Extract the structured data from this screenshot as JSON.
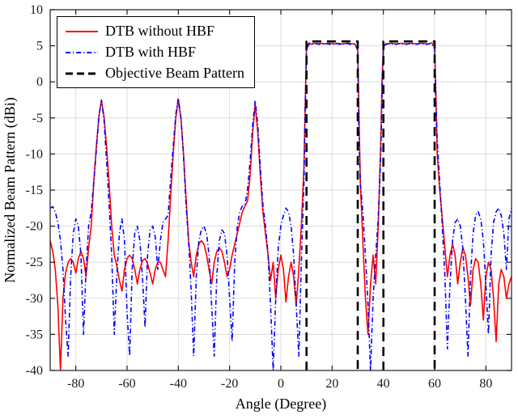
{
  "figure": {
    "title": "",
    "xlabel": "Angle (Degree)",
    "ylabel": "Normalized Beam Pattern (dBi)"
  },
  "colors": {
    "background": "#ffffff",
    "axis": "#1a1a1a",
    "grid": "#dcdcdc",
    "red": "#ff0000",
    "blue": "#0000ff",
    "black": "#000000"
  },
  "chart_data": {
    "type": "line",
    "title": "",
    "xlabel": "Angle (Degree)",
    "ylabel": "Normalized Beam Pattern (dBi)",
    "xlim": [
      -90,
      90
    ],
    "ylim": [
      -40,
      10
    ],
    "xticks": [
      -80,
      -60,
      -40,
      -20,
      0,
      20,
      40,
      60,
      80
    ],
    "yticks": [
      -40,
      -35,
      -30,
      -25,
      -20,
      -15,
      -10,
      -5,
      0,
      5,
      10
    ],
    "grid": true,
    "legend_position": "top-left",
    "features": {
      "narrow_beam_peaks_deg": [
        -70,
        -40,
        -10
      ],
      "narrow_beam_peak_level_dbi": -2.5,
      "flat_beam_bands_deg": [
        [
          10,
          30
        ],
        [
          40,
          60
        ]
      ],
      "flat_beam_level_dbi": 5.3,
      "objective_level_dbi": 5.6
    },
    "series": [
      {
        "name": "DTB without HBF",
        "color": "#ff0000",
        "style": "solid",
        "width": 1.6,
        "x": [
          -90,
          -89,
          -88,
          -87,
          -86,
          -85,
          -84,
          -83,
          -82,
          -81,
          -80,
          -79,
          -78,
          -77,
          -76,
          -75,
          -74,
          -73,
          -72,
          -71,
          -70,
          -69,
          -68,
          -67,
          -66,
          -65,
          -64,
          -63,
          -62,
          -61,
          -60,
          -59,
          -58,
          -57,
          -56,
          -55,
          -54,
          -53,
          -52,
          -51,
          -50,
          -49,
          -48,
          -47,
          -46,
          -45,
          -44,
          -43,
          -42,
          -41,
          -40,
          -39,
          -38,
          -37,
          -36,
          -35,
          -34,
          -33,
          -32,
          -31,
          -30,
          -29,
          -28,
          -27,
          -26,
          -25,
          -24,
          -23,
          -22,
          -21,
          -20,
          -19,
          -18,
          -17,
          -16,
          -15,
          -14,
          -13,
          -12,
          -11,
          -10,
          -9,
          -8,
          -7,
          -6,
          -5,
          -4,
          -3,
          -2,
          -1,
          0,
          1,
          2,
          3,
          4,
          5,
          6,
          7,
          8,
          9,
          9.5,
          10,
          11,
          12,
          13,
          14,
          15,
          16,
          17,
          18,
          19,
          20,
          21,
          22,
          23,
          24,
          25,
          26,
          27,
          28,
          29,
          30,
          30.5,
          31,
          32,
          33,
          34,
          35,
          36,
          37,
          38,
          39,
          39.5,
          40,
          41,
          42,
          43,
          44,
          45,
          46,
          47,
          48,
          49,
          50,
          51,
          52,
          53,
          54,
          55,
          56,
          57,
          58,
          59,
          60,
          60.5,
          61,
          62,
          63,
          64,
          65,
          66,
          67,
          68,
          69,
          70,
          71,
          72,
          73,
          74,
          75,
          76,
          77,
          78,
          79,
          80,
          81,
          82,
          83,
          84,
          85,
          86,
          87,
          88,
          89,
          90
        ],
        "y": [
          -22,
          -23.5,
          -26,
          -31,
          -40,
          -30,
          -26.5,
          -25,
          -24.5,
          -25,
          -26.5,
          -24.5,
          -23.5,
          -24.5,
          -27,
          -23,
          -20,
          -14,
          -9,
          -4.8,
          -2.6,
          -4.8,
          -9,
          -14,
          -20,
          -24,
          -25.5,
          -27.5,
          -29,
          -26,
          -24.5,
          -24,
          -24.5,
          -26,
          -28,
          -26,
          -24.8,
          -24.5,
          -25.2,
          -26.5,
          -28,
          -26,
          -25,
          -25,
          -26,
          -27,
          -22,
          -16,
          -10,
          -5,
          -2.4,
          -5,
          -10,
          -16,
          -22,
          -25,
          -27,
          -24,
          -22.5,
          -22,
          -22.5,
          -24,
          -26,
          -28,
          -25,
          -23.5,
          -23,
          -23.5,
          -25,
          -27,
          -26,
          -24,
          -22.5,
          -21,
          -19.5,
          -18,
          -17.2,
          -16.5,
          -13,
          -7,
          -3.2,
          -7,
          -13,
          -18,
          -21,
          -24,
          -27.5,
          -25,
          -30,
          -26,
          -24,
          -26,
          -30.5,
          -27,
          -25,
          -27,
          -31,
          -26,
          -20,
          -12,
          -3,
          4.8,
          5.4,
          5.2,
          5.35,
          5.25,
          5.3,
          5.35,
          5.25,
          5.3,
          5.35,
          5.3,
          5.25,
          5.35,
          5.3,
          5.25,
          5.3,
          5.35,
          5.3,
          5.3,
          5.2,
          4.5,
          -5,
          -14,
          -22,
          -30,
          -35,
          -28,
          -24,
          -28,
          -20,
          -8,
          0.5,
          4.8,
          5.3,
          5.25,
          5.35,
          5.3,
          5.25,
          5.3,
          5.35,
          5.3,
          5.25,
          5.3,
          5.35,
          5.3,
          5.25,
          5.3,
          5.35,
          5.3,
          5.25,
          5.3,
          5.4,
          4.8,
          -2,
          -10,
          -15,
          -19,
          -23,
          -27,
          -24,
          -22.5,
          -24,
          -28,
          -25,
          -23,
          -24,
          -27,
          -31,
          -26,
          -24.5,
          -25,
          -28,
          -33,
          -27,
          -25,
          -26,
          -30,
          -36,
          -28,
          -26,
          -27,
          -30,
          -28,
          -27
        ]
      },
      {
        "name": "DTB with HBF",
        "color": "#0000ff",
        "style": "dash-dot",
        "width": 1.6,
        "x": [
          -90,
          -89,
          -88,
          -87,
          -86,
          -85,
          -84,
          -83,
          -82,
          -81,
          -80,
          -79,
          -78,
          -77,
          -76,
          -75,
          -74,
          -73,
          -72,
          -71,
          -70,
          -69,
          -68,
          -67,
          -66,
          -65,
          -64,
          -63,
          -62,
          -61,
          -60,
          -59,
          -58,
          -57,
          -56,
          -55,
          -54,
          -53,
          -52,
          -51,
          -50,
          -49,
          -48,
          -47,
          -46,
          -45,
          -44,
          -43,
          -42,
          -41,
          -40,
          -39,
          -38,
          -37,
          -36,
          -35,
          -34,
          -33,
          -32,
          -31,
          -30,
          -29,
          -28,
          -27,
          -26,
          -25,
          -24,
          -23,
          -22,
          -21,
          -20,
          -19,
          -18,
          -17,
          -16,
          -15,
          -14,
          -13,
          -12,
          -11,
          -10,
          -9,
          -8,
          -7,
          -6,
          -5,
          -4,
          -3,
          -2,
          -1,
          0,
          1,
          2,
          3,
          4,
          5,
          6,
          7,
          8,
          9,
          9.5,
          10,
          11,
          12,
          13,
          14,
          15,
          16,
          17,
          18,
          19,
          20,
          21,
          22,
          23,
          24,
          25,
          26,
          27,
          28,
          29,
          30,
          30.5,
          31,
          32,
          33,
          34,
          35,
          36,
          37,
          38,
          39,
          39.5,
          40,
          41,
          42,
          43,
          44,
          45,
          46,
          47,
          48,
          49,
          50,
          51,
          52,
          53,
          54,
          55,
          56,
          57,
          58,
          59,
          60,
          60.5,
          61,
          62,
          63,
          64,
          65,
          66,
          67,
          68,
          69,
          70,
          71,
          72,
          73,
          74,
          75,
          76,
          77,
          78,
          79,
          80,
          81,
          82,
          83,
          84,
          85,
          86,
          87,
          88,
          89,
          90
        ],
        "y": [
          -17.5,
          -17.3,
          -18,
          -19.5,
          -22,
          -26,
          -33,
          -38,
          -27,
          -21,
          -19,
          -20,
          -24,
          -35,
          -26,
          -20,
          -18,
          -14,
          -9.5,
          -4.8,
          -2.5,
          -5.2,
          -11,
          -17,
          -24,
          -35,
          -27,
          -21,
          -19,
          -22,
          -32,
          -38,
          -26,
          -21,
          -20,
          -22,
          -27,
          -34,
          -24,
          -20.5,
          -20,
          -21.5,
          -26,
          -22,
          -19.5,
          -19,
          -18.5,
          -13.5,
          -9,
          -4.5,
          -2.3,
          -5,
          -10,
          -17,
          -22,
          -29,
          -38,
          -27,
          -22,
          -20.5,
          -20,
          -21,
          -24,
          -31,
          -38,
          -27,
          -22,
          -20.5,
          -21,
          -24,
          -30,
          -36,
          -25,
          -20,
          -18,
          -17.2,
          -17,
          -15,
          -11,
          -6,
          -2.6,
          -6,
          -12,
          -17,
          -20,
          -24,
          -31,
          -40,
          -30,
          -23,
          -20,
          -18.5,
          -17.5,
          -18,
          -20,
          -24,
          -31,
          -38,
          -25,
          -14,
          -3.5,
          4.6,
          5.2,
          5.3,
          5.2,
          5.3,
          5.2,
          5.3,
          5.2,
          5.3,
          5.2,
          5.3,
          5.2,
          5.3,
          5.2,
          5.3,
          5.2,
          5.3,
          5.2,
          5.3,
          5.2,
          4.4,
          -8,
          -14,
          -18,
          -24,
          -31,
          -40,
          -30,
          -24,
          -19,
          -10,
          -1,
          4.6,
          5.2,
          5.3,
          5.2,
          5.3,
          5.2,
          5.3,
          5.2,
          5.3,
          5.2,
          5.3,
          5.2,
          5.3,
          5.2,
          5.3,
          5.2,
          5.3,
          5.2,
          5.3,
          5.2,
          4.6,
          -3,
          -8,
          -14,
          -20,
          -27,
          -37,
          -28,
          -22,
          -19.5,
          -19,
          -20,
          -23,
          -30,
          -38,
          -27,
          -21,
          -18.5,
          -18,
          -19,
          -22,
          -28,
          -35,
          -24,
          -19.5,
          -18,
          -17.5,
          -18.5,
          -21,
          -26,
          -19,
          -17.5
        ]
      },
      {
        "name": "Objective Beam Pattern",
        "color": "#000000",
        "style": "dashed",
        "width": 2.6,
        "segments": [
          {
            "x": [
              10,
              10,
              30,
              30
            ],
            "y": [
              -40,
              5.6,
              5.6,
              -40
            ]
          },
          {
            "x": [
              40,
              40,
              60,
              60
            ],
            "y": [
              -40,
              5.6,
              5.6,
              -40
            ]
          }
        ]
      }
    ]
  }
}
